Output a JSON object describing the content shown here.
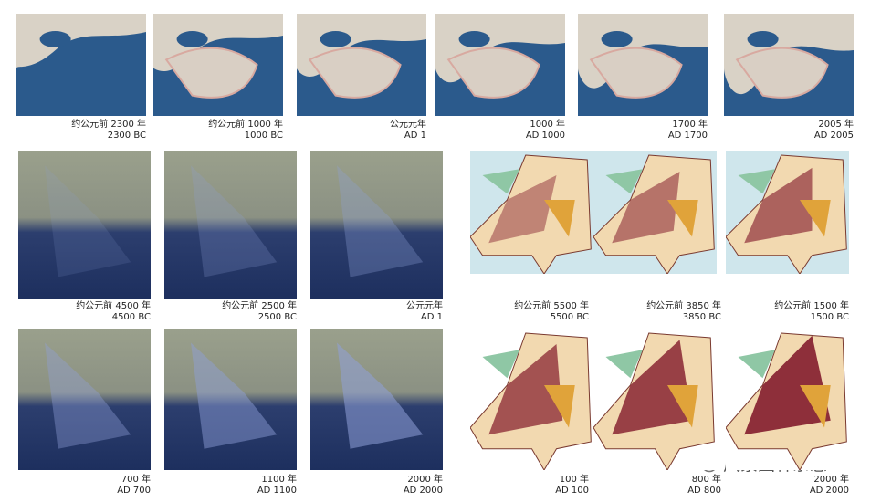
{
  "top_row": [
    {
      "caption_cn": "约公元前 2300 年",
      "caption_en": "2300 BC"
    },
    {
      "caption_cn": "约公元前 1000 年",
      "caption_en": "1000 BC"
    },
    {
      "caption_cn": "公元元年",
      "caption_en": "AD 1"
    },
    {
      "caption_cn": "1000 年",
      "caption_en": "AD 1000"
    },
    {
      "caption_cn": "1700 年",
      "caption_en": "AD 1700"
    },
    {
      "caption_cn": "2005 年",
      "caption_en": "AD 2005"
    }
  ],
  "delta_panels": [
    {
      "caption_cn": "约公元前 4500 年",
      "caption_en": "4500 BC"
    },
    {
      "caption_cn": "约公元前 2500 年",
      "caption_en": "2500 BC"
    },
    {
      "caption_cn": "公元元年",
      "caption_en": "AD 1"
    },
    {
      "caption_cn": "700 年",
      "caption_en": "AD 700"
    },
    {
      "caption_cn": "1100 年",
      "caption_en": "AD 1100"
    },
    {
      "caption_cn": "2000 年",
      "caption_en": "AD 2000"
    }
  ],
  "netherlands_panels": [
    {
      "caption_cn": "约公元前 5500 年",
      "caption_en": "5500 BC"
    },
    {
      "caption_cn": "约公元前 3850 年",
      "caption_en": "3850 BC"
    },
    {
      "caption_cn": "约公元前 1500 年",
      "caption_en": "1500 BC"
    },
    {
      "caption_cn": "100 年",
      "caption_en": "AD 100"
    },
    {
      "caption_cn": "800 年",
      "caption_en": "AD 800"
    },
    {
      "caption_cn": "2000 年",
      "caption_en": "AD 2000"
    }
  ],
  "watermark": "风景园林杂志"
}
